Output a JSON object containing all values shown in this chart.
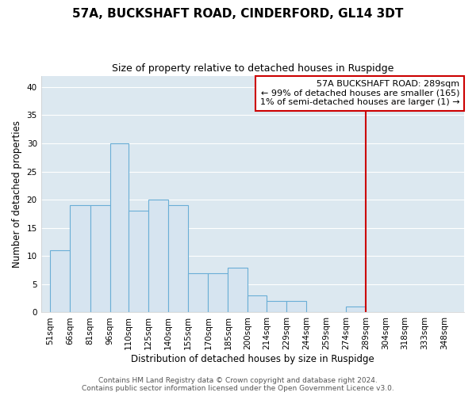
{
  "title": "57A, BUCKSHAFT ROAD, CINDERFORD, GL14 3DT",
  "subtitle": "Size of property relative to detached houses in Ruspidge",
  "xlabel": "Distribution of detached houses by size in Ruspidge",
  "ylabel": "Number of detached properties",
  "bar_left_edges": [
    51,
    66,
    81,
    96,
    110,
    125,
    140,
    155,
    170,
    185,
    200,
    214,
    229,
    244,
    259,
    274,
    289,
    304,
    318,
    333
  ],
  "bar_widths": [
    15,
    15,
    15,
    14,
    15,
    15,
    15,
    15,
    15,
    15,
    14,
    15,
    15,
    15,
    15,
    15,
    15,
    14,
    15,
    15
  ],
  "bar_heights": [
    11,
    19,
    19,
    30,
    18,
    20,
    19,
    7,
    7,
    8,
    3,
    2,
    2,
    0,
    0,
    1,
    0,
    0,
    0,
    0
  ],
  "tick_labels": [
    "51sqm",
    "66sqm",
    "81sqm",
    "96sqm",
    "110sqm",
    "125sqm",
    "140sqm",
    "155sqm",
    "170sqm",
    "185sqm",
    "200sqm",
    "214sqm",
    "229sqm",
    "244sqm",
    "259sqm",
    "274sqm",
    "289sqm",
    "304sqm",
    "318sqm",
    "333sqm",
    "348sqm"
  ],
  "tick_positions": [
    51,
    66,
    81,
    96,
    110,
    125,
    140,
    155,
    170,
    185,
    200,
    214,
    229,
    244,
    259,
    274,
    289,
    304,
    318,
    333,
    348
  ],
  "bar_color": "#d6e4f0",
  "bar_edge_color": "#6aaed6",
  "bar_linewidth": 0.8,
  "plot_bg_color": "#dce8f0",
  "fig_bg_color": "#ffffff",
  "grid_color": "#ffffff",
  "red_line_x": 289,
  "red_line_color": "#cc0000",
  "ylim": [
    0,
    42
  ],
  "xlim": [
    44,
    363
  ],
  "yticks": [
    0,
    5,
    10,
    15,
    20,
    25,
    30,
    35,
    40
  ],
  "annotation_text": "57A BUCKSHAFT ROAD: 289sqm\n← 99% of detached houses are smaller (165)\n1% of semi-detached houses are larger (1) →",
  "annotation_box_color": "#ffffff",
  "annotation_box_edge_color": "#cc0000",
  "footer_text": "Contains HM Land Registry data © Crown copyright and database right 2024.\nContains public sector information licensed under the Open Government Licence v3.0.",
  "title_fontsize": 11,
  "subtitle_fontsize": 9,
  "annotation_fontsize": 8,
  "footer_fontsize": 6.5,
  "ylabel_fontsize": 8.5,
  "xlabel_fontsize": 8.5,
  "tick_fontsize": 7.5
}
